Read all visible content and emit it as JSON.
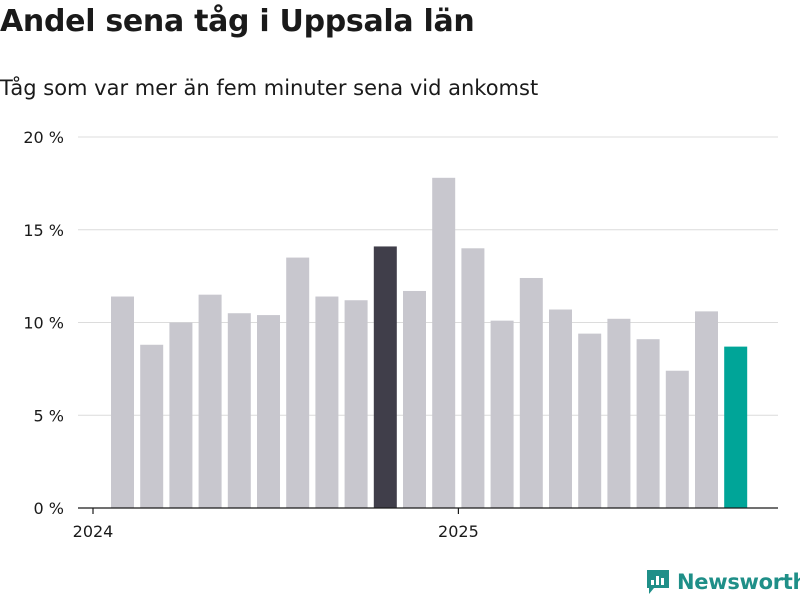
{
  "title": "Andel sena tåg i Uppsala län",
  "subtitle": "Tåg som var mer än fem minuter sena vid ankomst",
  "brand": {
    "name": "Newsworthy",
    "color": "#1f8f88"
  },
  "colors": {
    "bar_default": "#c8c7ce",
    "bar_highlight": "#403e4a",
    "bar_latest": "#00a598"
  },
  "chart_data": {
    "type": "bar",
    "title": "Andel sena tåg i Uppsala län",
    "ylabel": "",
    "xlabel": "",
    "ylim": [
      0,
      20
    ],
    "y_ticks": [
      0,
      5,
      10,
      15,
      20
    ],
    "y_tick_labels": [
      "0 %",
      "5 %",
      "10 %",
      "15 %",
      "20 %"
    ],
    "x_tick_labels": [
      {
        "label": "2024",
        "index": 0
      },
      {
        "label": "2025",
        "index": 12
      }
    ],
    "values": [
      11.4,
      8.8,
      10.0,
      11.5,
      10.5,
      10.4,
      13.5,
      11.4,
      11.2,
      14.1,
      11.7,
      17.8,
      14.0,
      10.1,
      12.4,
      10.7,
      9.4,
      10.2,
      9.1,
      7.4,
      10.6,
      8.7
    ],
    "highlight_index": 9,
    "latest_index": 21,
    "grid": true
  }
}
